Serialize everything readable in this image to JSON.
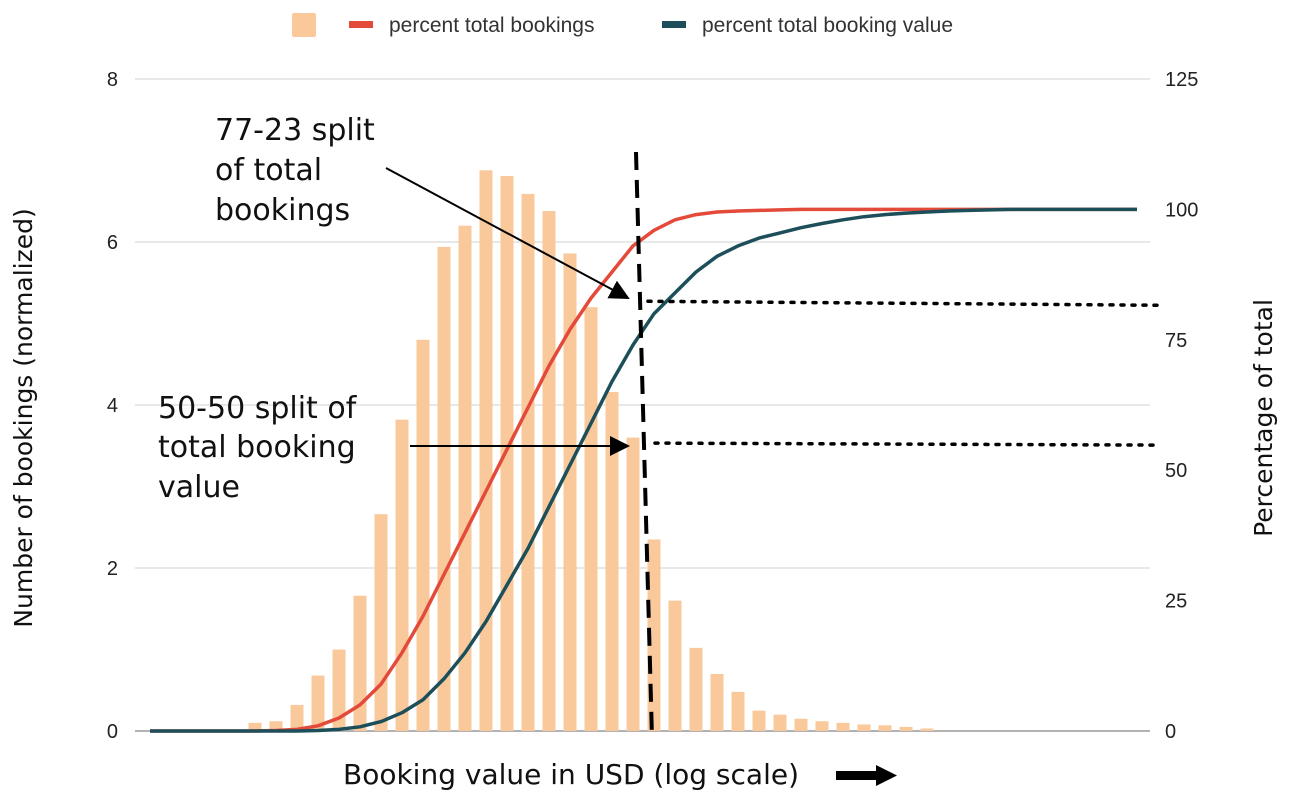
{
  "chart_data": {
    "type": "bar",
    "title": "",
    "xlabel": "Booking value in USD (log scale)",
    "ylabel": "Number of bookings (normalized)",
    "y2label": "Percentage of total",
    "ylim": [
      0,
      8
    ],
    "y2lim": [
      0,
      125
    ],
    "yticks": [
      "0",
      "2",
      "4",
      "6",
      "8"
    ],
    "y2ticks": [
      "0",
      "25",
      "50",
      "75",
      "100",
      "125"
    ],
    "grid": true,
    "legend_position": "top-center",
    "x_scale": "log",
    "bars": {
      "name": "",
      "color": "#f9c99c",
      "values": [
        0.0,
        0.0,
        0.0,
        0.0,
        0.0,
        0.1,
        0.12,
        0.32,
        0.68,
        1.0,
        1.66,
        2.66,
        3.82,
        4.8,
        5.94,
        6.2,
        6.88,
        6.81,
        6.59,
        6.38,
        5.86,
        5.2,
        4.16,
        3.6,
        2.35,
        1.6,
        1.02,
        0.7,
        0.48,
        0.25,
        0.2,
        0.15,
        0.12,
        0.1,
        0.08,
        0.07,
        0.05,
        0.03,
        0.0,
        0.0,
        0.0,
        0.0,
        0.0,
        0.0,
        0.0,
        0.0,
        0.0,
        0.0
      ]
    },
    "series": [
      {
        "name": "percent total bookings",
        "color": "#e44a3a",
        "axis": "right",
        "values": [
          0,
          0,
          0,
          0,
          0,
          0,
          0.1,
          0.3,
          1.0,
          2.5,
          5,
          9,
          15,
          22,
          30,
          38,
          46,
          54,
          62,
          70,
          77,
          83,
          88,
          93,
          96,
          98,
          99,
          99.5,
          99.7,
          99.8,
          99.9,
          100,
          100,
          100,
          100,
          100,
          100,
          100,
          100,
          100,
          100,
          100,
          100,
          100,
          100,
          100,
          100,
          100
        ]
      },
      {
        "name": "percent total booking value",
        "color": "#1d4f5a",
        "axis": "right",
        "values": [
          0,
          0,
          0,
          0,
          0,
          0,
          0,
          0,
          0.1,
          0.3,
          0.8,
          1.8,
          3.5,
          6,
          10,
          15,
          21,
          28,
          35,
          43,
          51,
          59,
          67,
          74,
          80,
          84,
          88,
          91,
          93,
          94.5,
          95.5,
          96.5,
          97.3,
          98,
          98.6,
          99,
          99.3,
          99.5,
          99.7,
          99.8,
          99.9,
          100,
          100,
          100,
          100,
          100,
          100,
          100
        ]
      }
    ],
    "annotations": [
      {
        "id": "bookings-split",
        "lines": [
          "77-23 split",
          "of total",
          "bookings"
        ],
        "target_y2": 82
      },
      {
        "id": "value-split",
        "lines": [
          "50-50 split of",
          "total booking",
          "value"
        ],
        "target_y2": 55
      }
    ]
  }
}
